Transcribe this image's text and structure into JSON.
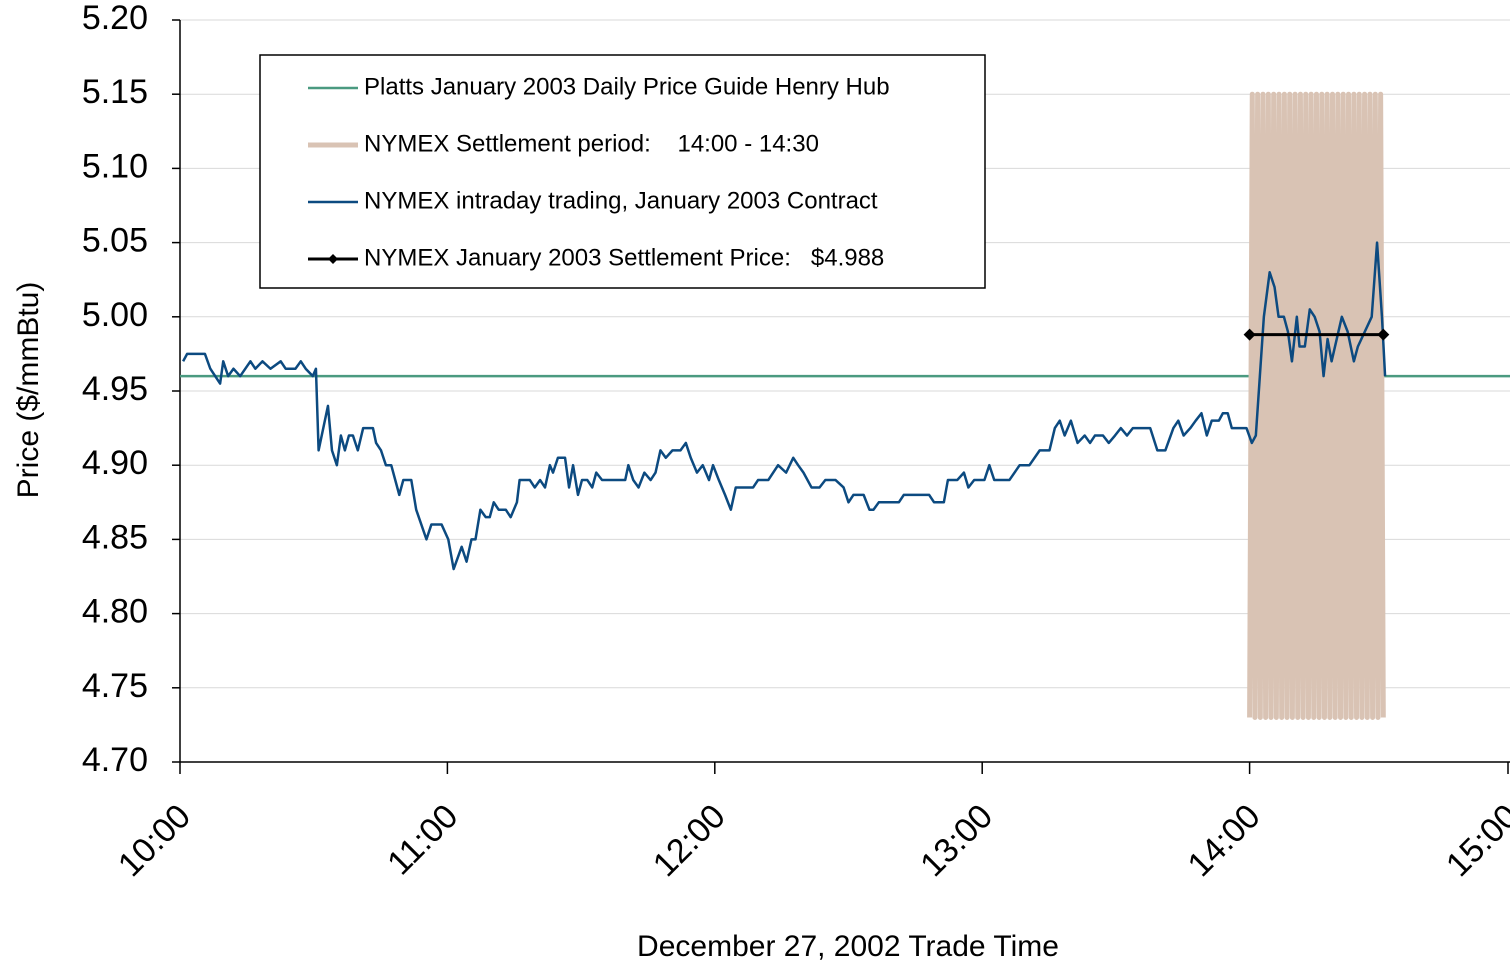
{
  "chart_data": {
    "type": "line",
    "xlabel": "December 27, 2002 Trade Time",
    "ylabel": "Price ($/mmBtu)",
    "xlim": [
      600,
      900
    ],
    "xticks": [
      {
        "value": 600,
        "label": "10:00"
      },
      {
        "value": 660,
        "label": "11:00"
      },
      {
        "value": 720,
        "label": "12:00"
      },
      {
        "value": 780,
        "label": "13:00"
      },
      {
        "value": 840,
        "label": "14:00"
      },
      {
        "value": 900,
        "label": "15:00"
      }
    ],
    "ylim": [
      4.7,
      5.2
    ],
    "yticks": [
      {
        "value": 4.7,
        "label": "4.70"
      },
      4.75,
      {
        "value": 4.8,
        "label": "4.80"
      },
      4.85,
      {
        "value": 4.9,
        "label": "4.90"
      },
      4.95,
      {
        "value": 5,
        "label": "5.00"
      },
      5.05,
      {
        "value": 5.1,
        "label": "5.10"
      },
      5.15,
      {
        "value": 5.2,
        "label": "5.20"
      }
    ],
    "grid": true,
    "series": [
      {
        "name": "Platts January 2003 Daily Price Guide Henry Hub",
        "color": "#4a9a80",
        "x": [
          600,
          900
        ],
        "values": [
          4.96,
          4.96
        ]
      },
      {
        "name": "NYMEX Settlement period:    14:00 - 14:30",
        "color": "#d9c3b4",
        "x": [
          840,
          840.6,
          841.2,
          841.8,
          842.4,
          843,
          843.6,
          844.2,
          844.8,
          845.4,
          846,
          846.6,
          847.2,
          847.8,
          848.4,
          849,
          849.6,
          850.2,
          850.8,
          851.4,
          852,
          852.6,
          853.2,
          853.8,
          854.4,
          855,
          855.6,
          856.2,
          856.8,
          857.4,
          858,
          858.6,
          859.2,
          859.8,
          860.4,
          861,
          861.6,
          862.2,
          862.8,
          863.4,
          864,
          864.6,
          865.2,
          865.8,
          866.4,
          867,
          867.6,
          868.2,
          868.8,
          869.4,
          870
        ],
        "values": [
          4.73,
          5.15,
          4.73,
          5.15,
          4.73,
          5.15,
          4.73,
          5.15,
          4.73,
          5.15,
          4.73,
          5.15,
          4.73,
          5.15,
          4.73,
          5.15,
          4.73,
          5.15,
          4.73,
          5.15,
          4.73,
          5.15,
          4.73,
          5.15,
          4.73,
          5.15,
          4.73,
          5.15,
          4.73,
          5.15,
          4.73,
          5.15,
          4.73,
          5.15,
          4.73,
          5.15,
          4.73,
          5.15,
          4.73,
          5.15,
          4.73,
          5.15,
          4.73,
          5.15,
          4.73,
          5.15,
          4.73,
          5.15,
          4.73,
          5.15,
          4.73
        ]
      },
      {
        "name": "NYMEX intraday trading, January 2003 Contract",
        "color": "#0c4a80",
        "x": [
          600.7,
          601.6,
          605.6,
          606.8,
          609.0,
          609.7,
          610.8,
          612.0,
          613.5,
          615.8,
          616.9,
          618.5,
          620.3,
          622.6,
          623.7,
          625.9,
          627.1,
          628.2,
          629.8,
          630.5,
          631.1,
          633.2,
          634.1,
          635.2,
          636.1,
          637.0,
          637.9,
          638.8,
          639.9,
          641.1,
          643.3,
          644.0,
          645.1,
          646.2,
          647.4,
          649.2,
          650.1,
          651.9,
          653.0,
          655.3,
          656.4,
          658.7,
          660.2,
          661.4,
          663.2,
          664.3,
          665.4,
          666.3,
          667.4,
          668.6,
          669.5,
          670.4,
          671.5,
          673.1,
          674.2,
          675.6,
          676.2,
          678.5,
          679.6,
          680.8,
          681.9,
          683.0,
          683.7,
          684.8,
          686.4,
          687.3,
          688.2,
          689.3,
          690.2,
          691.4,
          692.5,
          693.4,
          694.7,
          699.9,
          700.6,
          701.7,
          702.9,
          704.2,
          705.6,
          706.7,
          707.8,
          709.0,
          710.5,
          712.3,
          713.5,
          714.6,
          716.0,
          717.3,
          718.7,
          719.6,
          720.9,
          722.3,
          723.6,
          724.7,
          728.6,
          729.7,
          732.0,
          734.2,
          736.0,
          737.6,
          738.7,
          739.9,
          741.7,
          743.5,
          744.8,
          747.1,
          748.9,
          750.0,
          751.1,
          753.4,
          754.7,
          755.6,
          756.8,
          761.3,
          762.4,
          768.1,
          769.2,
          771.4,
          772.3,
          774.4,
          775.9,
          776.9,
          778.2,
          780.5,
          781.6,
          782.7,
          786.1,
          788.4,
          790.6,
          792.9,
          795.1,
          796.3,
          797.4,
          798.5,
          799.9,
          801.4,
          803.0,
          804.2,
          805.3,
          807.1,
          808.4,
          809.8,
          811.1,
          812.5,
          813.8,
          817.7,
          819.3,
          821.1,
          822.9,
          824.0,
          825.2,
          826.7,
          827.9,
          829.2,
          830.4,
          831.5,
          833.1,
          834.0,
          835.1,
          836.0,
          839.3,
          840.5,
          841.4,
          842.3,
          843.2,
          844.5,
          845.6,
          846.5,
          847.7,
          848.6,
          849.5,
          850.6,
          851.2,
          852.4,
          853.5,
          854.6,
          855.7,
          856.6,
          857.5,
          858.4,
          860.7,
          862.0,
          863.4,
          864.3,
          867.4,
          868.6,
          869.7,
          870.4
        ],
        "values": [
          4.97,
          4.975,
          4.975,
          4.965,
          4.955,
          4.97,
          4.96,
          4.965,
          4.96,
          4.97,
          4.965,
          4.97,
          4.965,
          4.97,
          4.965,
          4.965,
          4.97,
          4.965,
          4.96,
          4.965,
          4.91,
          4.94,
          4.91,
          4.9,
          4.92,
          4.91,
          4.92,
          4.92,
          4.91,
          4.925,
          4.925,
          4.915,
          4.91,
          4.9,
          4.9,
          4.88,
          4.89,
          4.89,
          4.87,
          4.85,
          4.86,
          4.86,
          4.85,
          4.83,
          4.845,
          4.835,
          4.85,
          4.85,
          4.87,
          4.865,
          4.865,
          4.875,
          4.87,
          4.87,
          4.865,
          4.875,
          4.89,
          4.89,
          4.885,
          4.89,
          4.885,
          4.9,
          4.895,
          4.905,
          4.905,
          4.885,
          4.9,
          4.88,
          4.89,
          4.89,
          4.885,
          4.895,
          4.89,
          4.89,
          4.9,
          4.89,
          4.885,
          4.895,
          4.89,
          4.895,
          4.91,
          4.905,
          4.91,
          4.91,
          4.915,
          4.905,
          4.895,
          4.9,
          4.89,
          4.9,
          4.89,
          4.88,
          4.87,
          4.885,
          4.885,
          4.89,
          4.89,
          4.9,
          4.895,
          4.905,
          4.9,
          4.895,
          4.885,
          4.885,
          4.89,
          4.89,
          4.885,
          4.875,
          4.88,
          4.88,
          4.87,
          4.87,
          4.875,
          4.875,
          4.88,
          4.88,
          4.875,
          4.875,
          4.89,
          4.89,
          4.895,
          4.885,
          4.89,
          4.89,
          4.9,
          4.89,
          4.89,
          4.9,
          4.9,
          4.91,
          4.91,
          4.925,
          4.93,
          4.92,
          4.93,
          4.915,
          4.92,
          4.915,
          4.92,
          4.92,
          4.915,
          4.92,
          4.925,
          4.92,
          4.925,
          4.925,
          4.91,
          4.91,
          4.925,
          4.93,
          4.92,
          4.925,
          4.93,
          4.935,
          4.92,
          4.93,
          4.93,
          4.935,
          4.935,
          4.925,
          4.925,
          4.915,
          4.92,
          4.96,
          5.0,
          5.03,
          5.02,
          5.0,
          5.0,
          4.99,
          4.97,
          5.0,
          4.98,
          4.98,
          5.005,
          5.0,
          4.99,
          4.96,
          4.985,
          4.97,
          5.0,
          4.99,
          4.97,
          4.98,
          5.0,
          5.05,
          5.0,
          4.96
        ]
      },
      {
        "name": "NYMEX January 2003 Settlement Price:   $4.988",
        "color": "#000000",
        "marker": "diamond",
        "x": [
          840,
          870
        ],
        "values": [
          4.988,
          4.988
        ]
      }
    ]
  }
}
